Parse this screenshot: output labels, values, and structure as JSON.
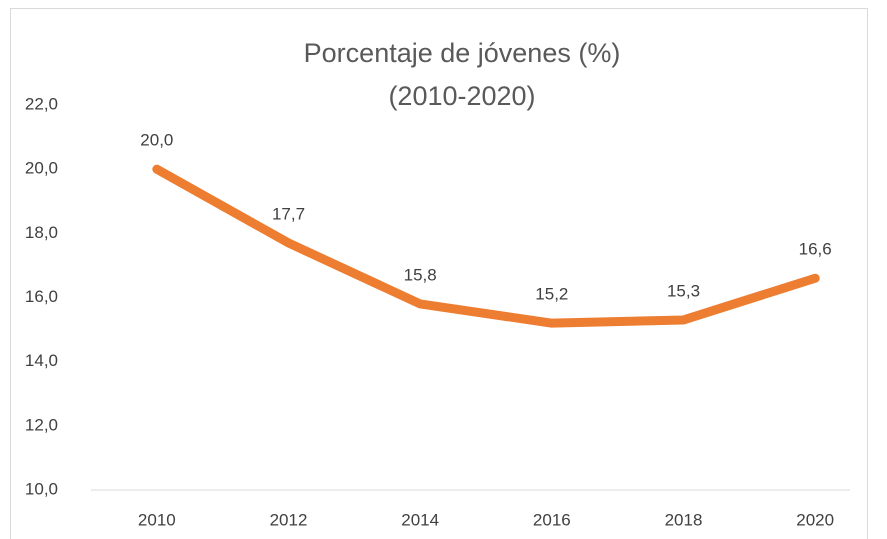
{
  "chart_data": {
    "type": "line",
    "title": "Porcentaje de jóvenes (%)",
    "subtitle": "(2010-2020)",
    "categories": [
      "2010",
      "2012",
      "2014",
      "2016",
      "2018",
      "2020"
    ],
    "values": [
      20.0,
      17.7,
      15.8,
      15.2,
      15.3,
      16.6
    ],
    "value_labels": [
      "20,0",
      "17,7",
      "15,8",
      "15,2",
      "15,3",
      "16,6"
    ],
    "color": "#ed7d31",
    "ylim": [
      10,
      22
    ],
    "yticks": [
      {
        "value": 10,
        "label": "10,0"
      },
      {
        "value": 12,
        "label": "12,0"
      },
      {
        "value": 14,
        "label": "14,0"
      },
      {
        "value": 16,
        "label": "16,0"
      },
      {
        "value": 18,
        "label": "18,0"
      },
      {
        "value": 20,
        "label": "20,0"
      },
      {
        "value": 22,
        "label": "22,0"
      }
    ],
    "grid": false
  }
}
